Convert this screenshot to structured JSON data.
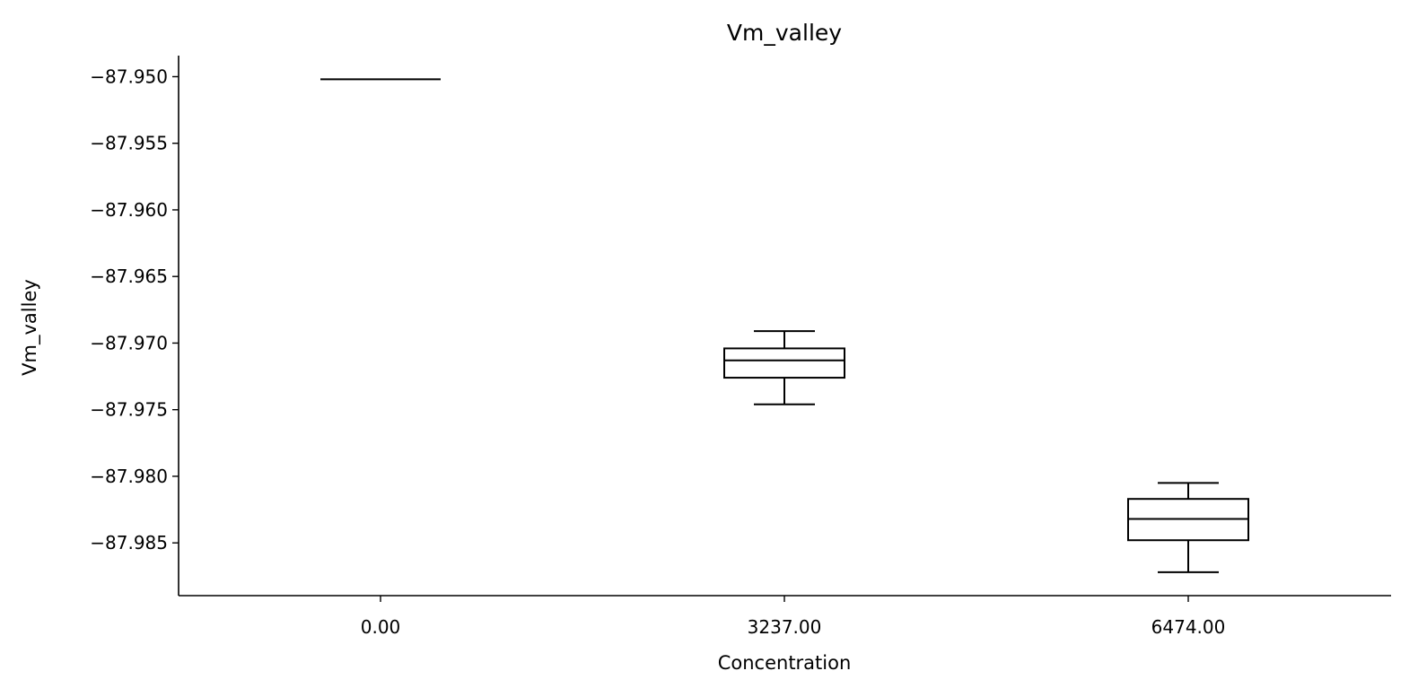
{
  "chart_data": {
    "type": "box",
    "title": "Vm_valley",
    "xlabel": "Concentration",
    "ylabel": "Vm_valley",
    "categories": [
      "0.00",
      "3237.00",
      "6474.00"
    ],
    "boxes": [
      {
        "category": "0.00",
        "whisker_low": -87.9502,
        "q1": -87.9502,
        "median": -87.9502,
        "q3": -87.9502,
        "whisker_high": -87.9502
      },
      {
        "category": "3237.00",
        "whisker_low": -87.9746,
        "q1": -87.9726,
        "median": -87.9713,
        "q3": -87.9704,
        "whisker_high": -87.9691
      },
      {
        "category": "6474.00",
        "whisker_low": -87.9872,
        "q1": -87.9848,
        "median": -87.9832,
        "q3": -87.9817,
        "whisker_high": -87.9805
      }
    ],
    "yticks": [
      -87.95,
      -87.955,
      -87.96,
      -87.965,
      -87.97,
      -87.975,
      -87.98,
      -87.985
    ],
    "ytick_labels": [
      "−87.950",
      "−87.955",
      "−87.960",
      "−87.965",
      "−87.970",
      "−87.975",
      "−87.980",
      "−87.985"
    ],
    "ylim": [
      -87.98896,
      -87.94842
    ],
    "grid": false,
    "legend": "none",
    "colors": {
      "box": "#000000",
      "background": "#ffffff"
    }
  }
}
